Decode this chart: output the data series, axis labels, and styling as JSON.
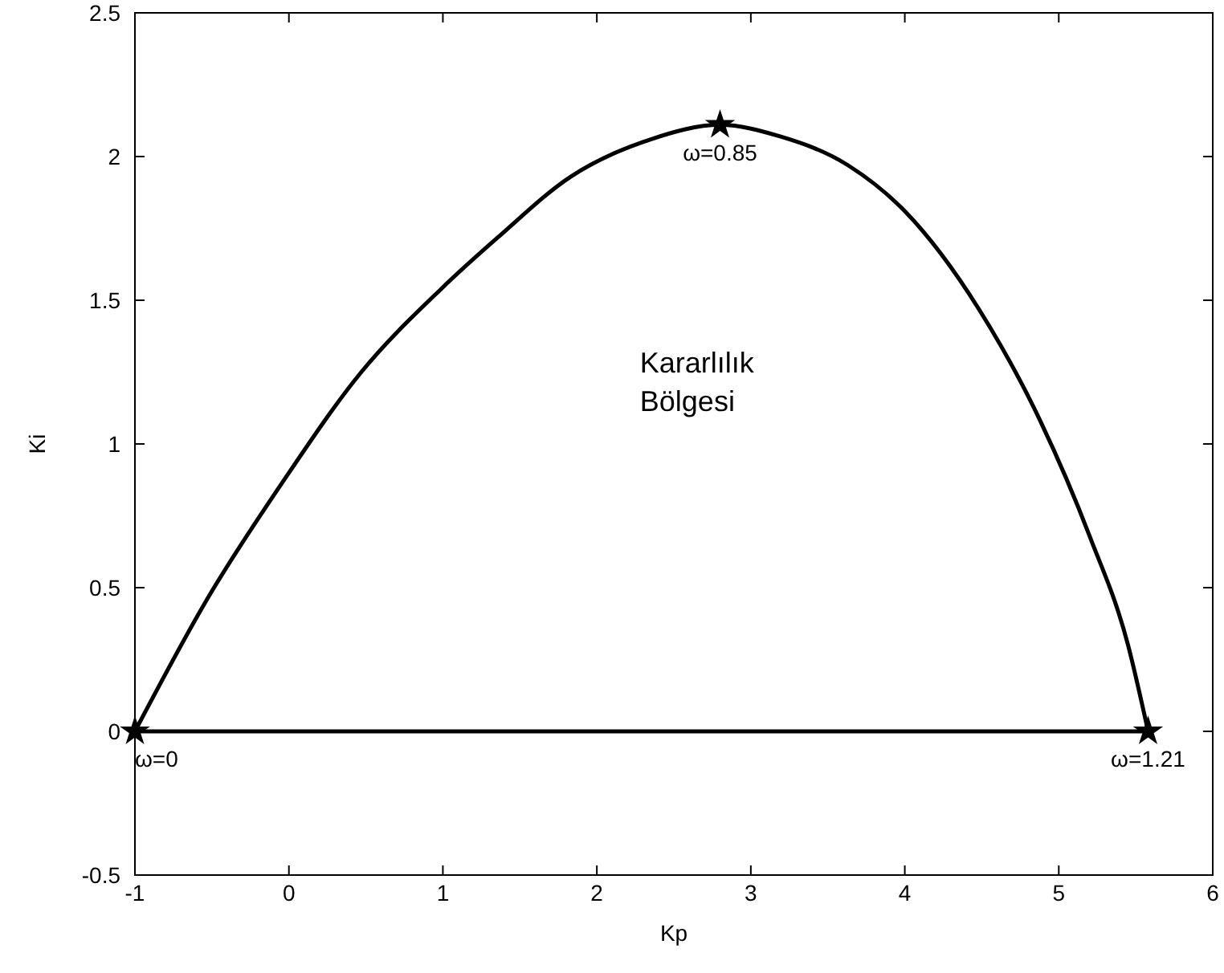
{
  "chart_data": {
    "type": "line",
    "xlabel": "Kp",
    "ylabel": "Ki",
    "xlim": [
      -1,
      6
    ],
    "ylim": [
      -0.5,
      2.5
    ],
    "xticks": [
      -1,
      0,
      1,
      2,
      3,
      4,
      5,
      6
    ],
    "yticks": [
      -0.5,
      0,
      0.5,
      1,
      1.5,
      2,
      2.5
    ],
    "grid": false,
    "series": [
      {
        "color": "#000000",
        "marker": "none",
        "x": [
          -1,
          -0.52,
          -0.05,
          0.47,
          0.99,
          1.36,
          1.83,
          2.35,
          2.8,
          3.19,
          3.63,
          4,
          4.48,
          4.88,
          5.2,
          5.45,
          5.58
        ],
        "values": [
          0,
          0.47,
          0.86,
          1.25,
          1.54,
          1.72,
          1.93,
          2.06,
          2.11,
          2.07,
          1.97,
          1.81,
          1.47,
          1.08,
          0.68,
          0.3,
          0
        ]
      },
      {
        "color": "#000000",
        "marker": "none",
        "x": [
          -1,
          5.58
        ],
        "values": [
          0,
          0
        ]
      },
      {
        "type": "scatter",
        "color": "#000000",
        "marker": "star",
        "x": [
          -1,
          2.8,
          5.58
        ],
        "values": [
          0,
          2.11,
          0
        ]
      }
    ],
    "annotations": [
      {
        "text": "ω=0",
        "x": -1,
        "y": 0
      },
      {
        "text": "ω=0.85",
        "x": 2.8,
        "y": 2.11
      },
      {
        "text": "ω=1.21",
        "x": 5.58,
        "y": 0
      },
      "Kararlılık\nBölgesi"
    ]
  }
}
